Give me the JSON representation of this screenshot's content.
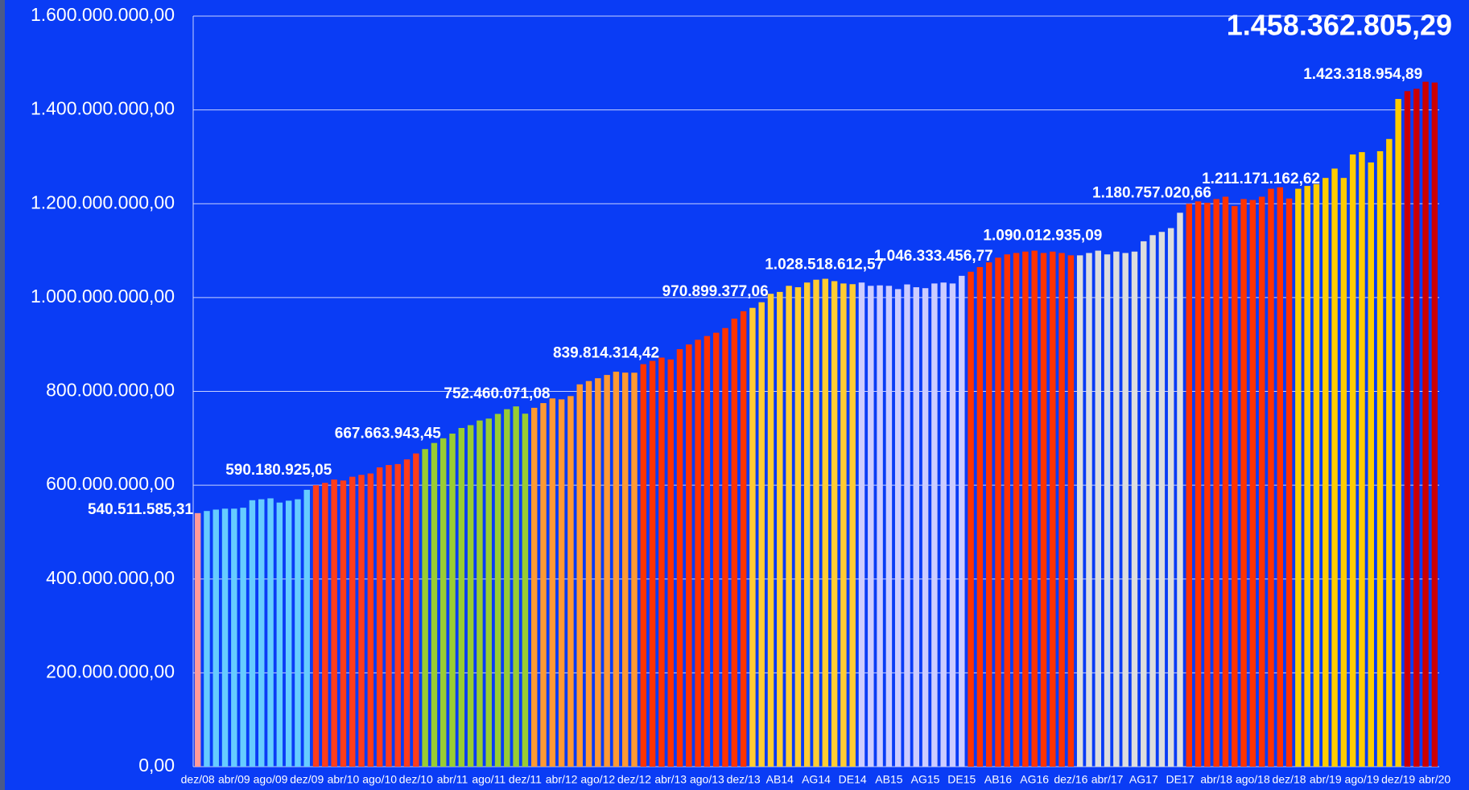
{
  "chart_data": {
    "type": "bar",
    "categories": [
      "dez/08",
      null,
      null,
      null,
      "abr/09",
      null,
      null,
      null,
      "ago/09",
      null,
      null,
      null,
      "dez/09",
      null,
      null,
      null,
      "abr/10",
      null,
      null,
      null,
      "ago/10",
      null,
      null,
      null,
      "dez/10",
      null,
      null,
      null,
      "abr/11",
      null,
      null,
      null,
      "ago/11",
      null,
      null,
      null,
      "dez/11",
      null,
      null,
      null,
      "abr/12",
      null,
      null,
      null,
      "ago/12",
      null,
      null,
      null,
      "dez/12",
      null,
      null,
      null,
      "abr/13",
      null,
      null,
      null,
      "ago/13",
      null,
      null,
      null,
      "dez/13",
      null,
      null,
      null,
      "AB14",
      null,
      null,
      null,
      "AG14",
      null,
      null,
      null,
      "DE14",
      null,
      null,
      null,
      "AB15",
      null,
      null,
      null,
      "AG15",
      null,
      null,
      null,
      "DE15",
      null,
      null,
      null,
      "AB16",
      null,
      null,
      null,
      "AG16",
      null,
      null,
      null,
      "dez/16",
      null,
      null,
      null,
      "abr/17",
      null,
      null,
      null,
      "AG17",
      null,
      null,
      null,
      "DE17",
      null,
      null,
      null,
      "abr/18",
      null,
      null,
      null,
      "ago/18",
      null,
      null,
      null,
      "dez/18",
      null,
      null,
      null,
      "abr/19",
      null,
      null,
      null,
      "ago/19",
      null,
      null,
      null,
      "dez/19",
      null,
      null,
      null,
      "abr/20"
    ],
    "values": [
      540511585.31,
      545000000,
      548000000,
      550000000,
      550000000,
      552000000,
      568000000,
      570000000,
      572000000,
      563000000,
      567000000,
      570000000,
      590180925.05,
      600000000,
      605000000,
      612000000,
      610000000,
      618000000,
      622000000,
      625000000,
      638000000,
      643000000,
      645000000,
      655000000,
      667663943.45,
      677000000,
      690000000,
      700000000,
      710000000,
      722000000,
      728000000,
      738000000,
      742000000,
      752000000,
      762000000,
      768000000,
      752460071.08,
      765000000,
      775000000,
      785000000,
      783000000,
      790000000,
      815000000,
      822000000,
      828000000,
      835000000,
      842000000,
      840000000,
      839814314.42,
      858000000,
      865000000,
      872000000,
      868000000,
      890000000,
      900000000,
      910000000,
      918000000,
      925000000,
      935000000,
      955000000,
      970899377.06,
      978000000,
      990000000,
      1008000000,
      1012000000,
      1025000000,
      1022000000,
      1032000000,
      1038000000,
      1040000000,
      1035000000,
      1030000000,
      1028518612.57,
      1032000000,
      1025000000,
      1026000000,
      1025000000,
      1018000000,
      1028000000,
      1022000000,
      1020000000,
      1030000000,
      1032000000,
      1030000000,
      1046333456.77,
      1055000000,
      1065000000,
      1075000000,
      1085000000,
      1092000000,
      1095000000,
      1098000000,
      1100000000,
      1095000000,
      1098000000,
      1095000000,
      1090012935.09,
      1090000000,
      1095000000,
      1100000000,
      1092000000,
      1098000000,
      1095000000,
      1098000000,
      1120000000,
      1133000000,
      1140000000,
      1148000000,
      1180757020.66,
      1200000000,
      1205000000,
      1202000000,
      1210000000,
      1215000000,
      1195000000,
      1210000000,
      1208000000,
      1215000000,
      1232000000,
      1235000000,
      1211171162.62,
      1232000000,
      1238000000,
      1242000000,
      1255000000,
      1275000000,
      1255000000,
      1305000000,
      1310000000,
      1288000000,
      1312000000,
      1338000000,
      1423318954.89,
      1440000000,
      1445000000,
      1460000000,
      1458362805.29
    ],
    "value_labels": [
      "540.511.585,31",
      null,
      null,
      null,
      null,
      null,
      null,
      null,
      null,
      null,
      null,
      null,
      "590.180.925,05",
      null,
      null,
      null,
      null,
      null,
      null,
      null,
      null,
      null,
      null,
      null,
      "667.663.943,45",
      null,
      null,
      null,
      null,
      null,
      null,
      null,
      null,
      null,
      null,
      null,
      "752.460.071,08",
      null,
      null,
      null,
      null,
      null,
      null,
      null,
      null,
      null,
      null,
      null,
      "839.814.314,42",
      null,
      null,
      null,
      null,
      null,
      null,
      null,
      null,
      null,
      null,
      null,
      "970.899.377,06",
      null,
      null,
      null,
      null,
      null,
      null,
      null,
      null,
      null,
      null,
      null,
      "1.028.518.612,57",
      null,
      null,
      null,
      null,
      null,
      null,
      null,
      null,
      null,
      null,
      null,
      "1.046.333.456,77",
      null,
      null,
      null,
      null,
      null,
      null,
      null,
      null,
      null,
      null,
      null,
      "1.090.012.935,09",
      null,
      null,
      null,
      null,
      null,
      null,
      null,
      null,
      null,
      null,
      null,
      "1.180.757.020,66",
      null,
      null,
      null,
      null,
      null,
      null,
      null,
      null,
      null,
      null,
      null,
      "1.211.171.162,62",
      null,
      null,
      null,
      null,
      null,
      null,
      null,
      null,
      null,
      null,
      null,
      "1.423.318.954,89",
      null,
      null,
      null,
      "1.458.362.805,29"
    ],
    "colors": [
      "#ff9a9a",
      "#66ccff",
      "#66ccff",
      "#66ccff",
      "#66ccff",
      "#66ccff",
      "#66ccff",
      "#66ccff",
      "#66ccff",
      "#66ccff",
      "#66ccff",
      "#66ccff",
      "#66ccff",
      "#ff3d1a",
      "#ff3d1a",
      "#ff3d1a",
      "#ff3d1a",
      "#ff3d1a",
      "#ff3d1a",
      "#ff3d1a",
      "#ff3d1a",
      "#ff3d1a",
      "#ff3d1a",
      "#ff3d1a",
      "#ff3d1a",
      "#99cc33",
      "#99cc33",
      "#99cc33",
      "#99cc33",
      "#99cc33",
      "#99cc33",
      "#99cc33",
      "#99cc33",
      "#99cc33",
      "#99cc33",
      "#99cc33",
      "#99cc33",
      "#ff9933",
      "#ff9933",
      "#ff9933",
      "#ff9933",
      "#ff9933",
      "#ff9933",
      "#ff9933",
      "#ff9933",
      "#ff9933",
      "#ff9933",
      "#ff9933",
      "#ff9933",
      "#ff3300",
      "#ff3300",
      "#ff3300",
      "#ff3300",
      "#ff3300",
      "#ff3300",
      "#ff3300",
      "#ff3300",
      "#ff3300",
      "#ff3300",
      "#ff3300",
      "#ff3300",
      "#ffcc33",
      "#ffcc33",
      "#ffcc33",
      "#ffcc33",
      "#ffcc33",
      "#ffcc33",
      "#ffcc33",
      "#ffcc33",
      "#ffcc33",
      "#ffcc33",
      "#ffcc33",
      "#ffcc33",
      "#ccccff",
      "#ccccff",
      "#ccccff",
      "#ccccff",
      "#ccccff",
      "#ccccff",
      "#ccccff",
      "#ccccff",
      "#ccccff",
      "#ccccff",
      "#ccccff",
      "#ccccff",
      "#ff3300",
      "#ff3300",
      "#ff3300",
      "#ff3300",
      "#ff3300",
      "#ff3300",
      "#ff3300",
      "#ff3300",
      "#ff3300",
      "#ff3300",
      "#ff3300",
      "#ff3300",
      "#dddddd",
      "#dddddd",
      "#dddddd",
      "#dddddd",
      "#dddddd",
      "#dddddd",
      "#dddddd",
      "#dddddd",
      "#dddddd",
      "#dddddd",
      "#dddddd",
      "#dddddd",
      "#ff3300",
      "#ff3300",
      "#ff3300",
      "#ff3300",
      "#ff3300",
      "#ff3300",
      "#ff3300",
      "#ff3300",
      "#ff3300",
      "#ff3300",
      "#ff3300",
      "#ff3300",
      "#ffcc00",
      "#ffcc00",
      "#ffcc00",
      "#ffcc00",
      "#ffcc00",
      "#ffcc00",
      "#ffcc00",
      "#ffcc00",
      "#ffcc00",
      "#ffcc00",
      "#ffcc00",
      "#ffcc00",
      "#cc0000",
      "#cc0000",
      "#cc0000",
      "#cc0000"
    ],
    "ylim": [
      0,
      1600000000
    ],
    "yticks": [
      {
        "value": 0,
        "label": "0,00"
      },
      {
        "value": 200000000,
        "label": "200.000.000,00"
      },
      {
        "value": 400000000,
        "label": "400.000.000,00"
      },
      {
        "value": 600000000,
        "label": "600.000.000,00"
      },
      {
        "value": 800000000,
        "label": "800.000.000,00"
      },
      {
        "value": 1000000000,
        "label": "1.000.000.000,00"
      },
      {
        "value": 1200000000,
        "label": "1.200.000.000,00"
      },
      {
        "value": 1400000000,
        "label": "1.400.000.000,00"
      },
      {
        "value": 1600000000,
        "label": "1.600.000.000,00"
      }
    ],
    "grid": true
  }
}
